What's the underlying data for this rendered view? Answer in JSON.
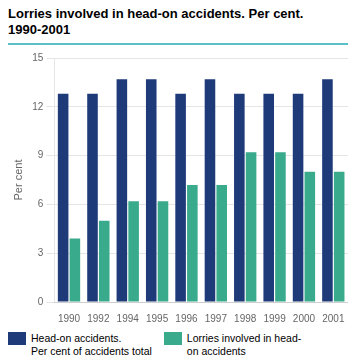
{
  "chart_data": {
    "type": "bar",
    "title": "Lorries involved in head-on accidents. Per cent.",
    "subtitle": "1990-2001",
    "ylabel": "Per cent",
    "categories": [
      "1990",
      "1992",
      "1994",
      "1995",
      "1996",
      "1997",
      "1998",
      "1999",
      "2000",
      "2001"
    ],
    "series": [
      {
        "name": "Head-on accidents.\nPer cent of accidents total",
        "color": "#1e3a78",
        "values": [
          12.8,
          12.8,
          13.7,
          13.7,
          12.8,
          13.7,
          12.8,
          12.8,
          12.8,
          13.7
        ]
      },
      {
        "name": "Lorries involved in head-\non accidents",
        "color": "#3aaa8c",
        "values": [
          3.9,
          5.0,
          6.2,
          6.2,
          7.2,
          7.2,
          9.2,
          9.2,
          8.0,
          8.0
        ]
      }
    ],
    "ylim": [
      0,
      15
    ],
    "yticks": [
      0,
      3,
      6,
      9,
      12,
      15
    ],
    "grid": "y",
    "legend": "bottom"
  }
}
